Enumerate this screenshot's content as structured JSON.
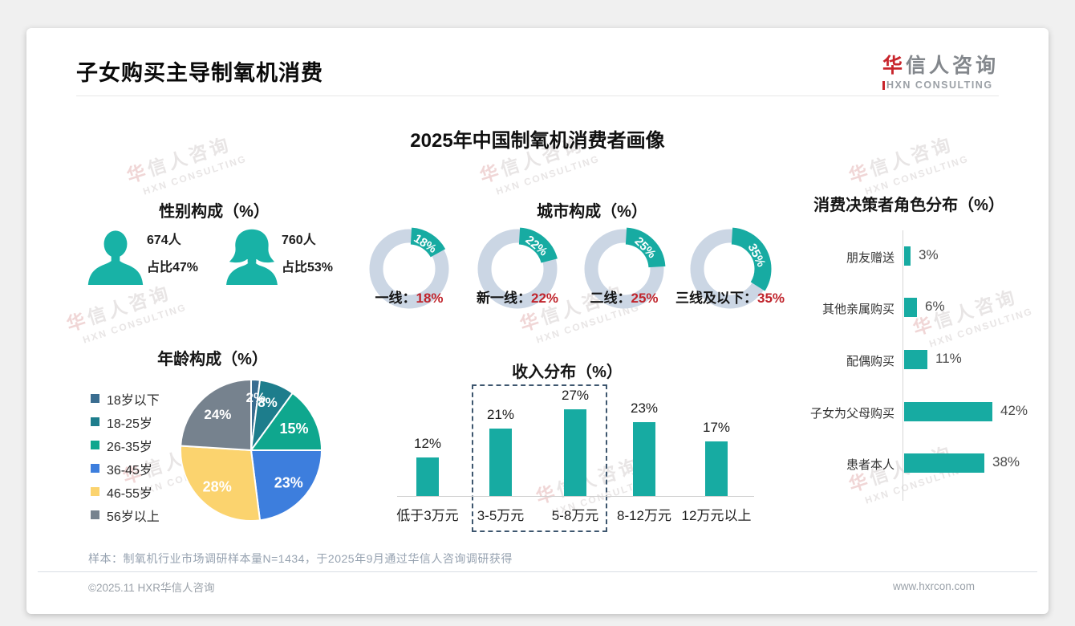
{
  "page": {
    "title": "子女购买主导制氧机消费",
    "subtitle": "2025年中国制氧机消费者画像",
    "logo": {
      "cn_accent": "华",
      "cn_rest": "信人咨询",
      "en": "HXN CONSULTING"
    },
    "watermark": {
      "line1": "华信人咨询",
      "line2": "HXN CONSULTING"
    },
    "note": "样本：制氧机行业市场调研样本量N=1434，于2025年9月通过华信人咨询调研获得",
    "footer_left": "©2025.11 HXR华信人咨询",
    "footer_right": "www.hxrcon.com"
  },
  "colors": {
    "teal": "#17ABA2",
    "icon_teal": "#18B2A6",
    "donut_ring": "#CBD6E4",
    "red_value": "#C0242C",
    "dashed_box": "#3D566E",
    "axis_line": "#D6D6D6"
  },
  "chart_data": [
    {
      "id": "gender",
      "type": "pictogram",
      "title": "性别构成（%）",
      "items": [
        {
          "gender": "male",
          "count": "674人",
          "share": "占比47%"
        },
        {
          "gender": "female",
          "count": "760人",
          "share": "占比53%"
        }
      ]
    },
    {
      "id": "city",
      "type": "donut",
      "title": "城市构成（%）",
      "unit": "%",
      "items": [
        {
          "label": "一线",
          "value": 18
        },
        {
          "label": "新一线",
          "value": 22
        },
        {
          "label": "二线",
          "value": 25
        },
        {
          "label": "三线及以下",
          "value": 35
        }
      ]
    },
    {
      "id": "age",
      "type": "pie",
      "title": "年龄构成（%）",
      "categories": [
        "18岁以下",
        "18-25岁",
        "26-35岁",
        "36-45岁",
        "46-55岁",
        "56岁以上"
      ],
      "values": [
        2,
        8,
        15,
        23,
        28,
        24
      ],
      "colors": [
        "#3A6D90",
        "#1D7D8C",
        "#0FA78E",
        "#3D7EDD",
        "#FBD36E",
        "#76828E"
      ],
      "legend_position": "left",
      "start_angle": "top",
      "direction": "clockwise"
    },
    {
      "id": "income",
      "type": "bar",
      "title": "收入分布（%）",
      "categories": [
        "低于3万元",
        "3-5万元",
        "5-8万元",
        "8-12万元",
        "12万元以上"
      ],
      "values": [
        12,
        21,
        27,
        23,
        17
      ],
      "highlight_categories": [
        "3-5万元",
        "5-8万元"
      ],
      "ylim": [
        0,
        30
      ],
      "grid": false
    },
    {
      "id": "decision",
      "type": "bar-horizontal",
      "title": "消费决策者角色分布（%）",
      "categories": [
        "朋友赠送",
        "其他亲属购买",
        "配偶购买",
        "子女为父母购买",
        "患者本人"
      ],
      "values": [
        3,
        6,
        11,
        42,
        38
      ],
      "xlim": [
        0,
        45
      ],
      "grid": false
    }
  ]
}
